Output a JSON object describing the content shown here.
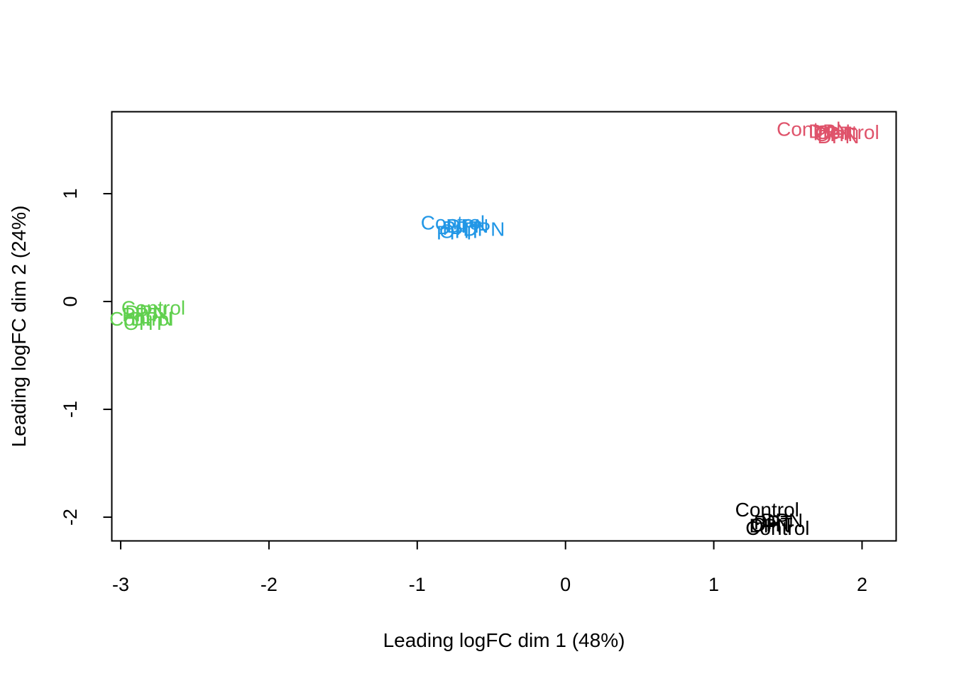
{
  "chart_data": {
    "type": "scatter",
    "title": "",
    "xlabel": "Leading logFC dim 1 (48%)",
    "ylabel": "Leading logFC dim 2 (24%)",
    "xlim": [
      -3.06,
      2.23
    ],
    "ylim": [
      -2.22,
      1.76
    ],
    "x_ticks": [
      -3,
      -2,
      -1,
      0,
      1,
      2
    ],
    "y_ticks": [
      -2,
      -1,
      0,
      1
    ],
    "x_tick_labels": [
      "-3",
      "-2",
      "-1",
      "0",
      "1",
      "2"
    ],
    "y_tick_labels": [
      "-2",
      "-1",
      "0",
      "1"
    ],
    "grid": false,
    "legend": "none",
    "points_note": "Text-label scatter (MDS plot); each sample drawn as its treatment label, colored by group.",
    "groups": [
      {
        "color": "#DF536B",
        "points": [
          {
            "label": "Control",
            "x": 1.64,
            "y": 1.6
          },
          {
            "label": "DPN",
            "x": 1.78,
            "y": 1.58
          },
          {
            "label": "Control",
            "x": 1.9,
            "y": 1.57
          },
          {
            "label": "PPT",
            "x": 1.8,
            "y": 1.56
          },
          {
            "label": "OHT",
            "x": 1.82,
            "y": 1.55
          },
          {
            "label": "DPN",
            "x": 1.84,
            "y": 1.53
          }
        ]
      },
      {
        "color": "#2297E6",
        "points": [
          {
            "label": "Control",
            "x": -0.76,
            "y": 0.73
          },
          {
            "label": "DPN",
            "x": -0.66,
            "y": 0.7
          },
          {
            "label": "PPT",
            "x": -0.7,
            "y": 0.68
          },
          {
            "label": "DPN",
            "x": -0.55,
            "y": 0.67
          },
          {
            "label": "OHT",
            "x": -0.71,
            "y": 0.65
          },
          {
            "label": "PPT",
            "x": -0.74,
            "y": 0.64
          }
        ]
      },
      {
        "color": "#61D04F",
        "points": [
          {
            "label": "Control",
            "x": -2.78,
            "y": -0.06
          },
          {
            "label": "DPN",
            "x": -2.83,
            "y": -0.1
          },
          {
            "label": "PPT",
            "x": -2.86,
            "y": -0.12
          },
          {
            "label": "Control",
            "x": -2.86,
            "y": -0.16
          },
          {
            "label": "DPN",
            "x": -2.79,
            "y": -0.16
          },
          {
            "label": "OHT",
            "x": -2.84,
            "y": -0.2
          }
        ]
      },
      {
        "color": "#000000",
        "points": [
          {
            "label": "Control",
            "x": 1.36,
            "y": -1.93
          },
          {
            "label": "DPN",
            "x": 1.46,
            "y": -2.03
          },
          {
            "label": "PPT",
            "x": 1.4,
            "y": -2.05
          },
          {
            "label": "OHT",
            "x": 1.39,
            "y": -2.07
          },
          {
            "label": "Control",
            "x": 1.43,
            "y": -2.1
          },
          {
            "label": "DPN",
            "x": 1.38,
            "y": -2.08
          }
        ]
      }
    ]
  }
}
